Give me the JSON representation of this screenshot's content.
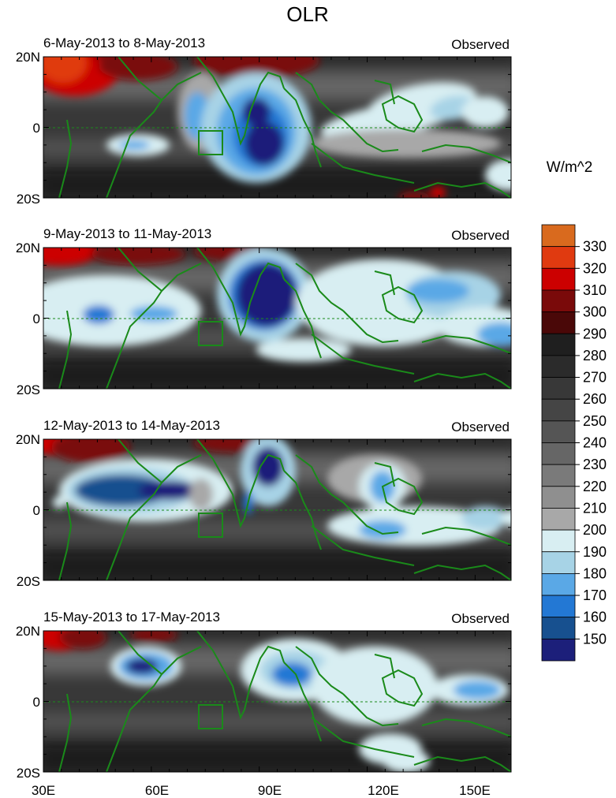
{
  "title": "OLR",
  "units_label": "W/m^2",
  "panels": [
    {
      "period": "6-May-2013 to 8-May-2013",
      "tag": "Observed"
    },
    {
      "period": "9-May-2013 to 11-May-2013",
      "tag": "Observed"
    },
    {
      "period": "12-May-2013 to 14-May-2013",
      "tag": "Observed"
    },
    {
      "period": "15-May-2013 to 17-May-2013",
      "tag": "Observed"
    }
  ],
  "lon_ticks": [
    "30E",
    "60E",
    "90E",
    "120E",
    "150E"
  ],
  "lat_ticks": [
    "20N",
    "0",
    "20S"
  ],
  "colorbar": {
    "levels": [
      330,
      320,
      310,
      300,
      290,
      280,
      270,
      260,
      250,
      240,
      230,
      220,
      210,
      200,
      190,
      180,
      170,
      160,
      150
    ],
    "colors": [
      "#d96a1e",
      "#e03a10",
      "#cc0000",
      "#7a0a0a",
      "#4a0808",
      "#1f1f1f",
      "#2b2b2b",
      "#383838",
      "#454545",
      "#555555",
      "#666666",
      "#7a7a7a",
      "#8f8f8f",
      "#a8a8a8",
      "#d8eef2",
      "#a7d3e6",
      "#5aa8e6",
      "#2378d4",
      "#17508f",
      "#1c1f7a"
    ]
  },
  "colors": {
    "coast": "#1a8a1a",
    "frame": "#000000"
  }
}
